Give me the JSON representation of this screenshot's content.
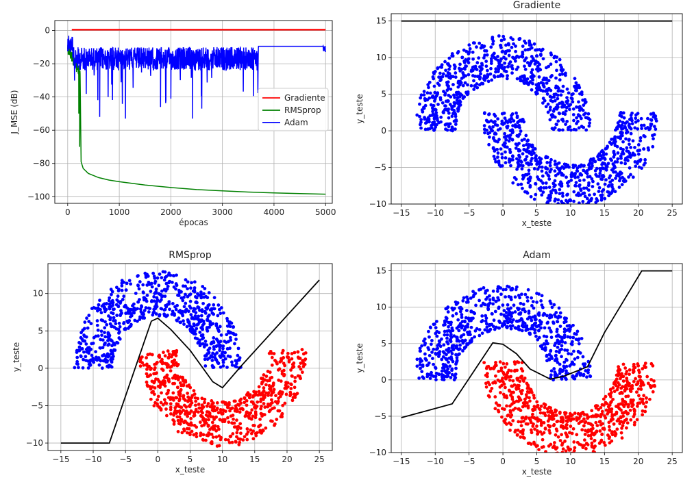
{
  "chart_data": [
    {
      "type": "line",
      "title": "",
      "xlabel": "épocas",
      "ylabel": "J_MSE (dB)",
      "xlim": [
        -250,
        5130
      ],
      "ylim": [
        -104,
        6
      ],
      "xticks": [
        0,
        1000,
        2000,
        3000,
        4000,
        5000
      ],
      "yticks": [
        0,
        -20,
        -40,
        -60,
        -80,
        -100
      ],
      "grid": true,
      "legend": "center-right",
      "series": [
        {
          "name": "Gradiente",
          "color": "#ff0000",
          "x": [
            80,
            5000
          ],
          "y": [
            0.5,
            0.5
          ]
        },
        {
          "name": "RMSprop",
          "color": "#008000",
          "x": [
            0,
            30,
            60,
            90,
            120,
            150,
            180,
            200,
            215,
            230,
            260,
            300,
            400,
            600,
            800,
            1000,
            1500,
            2000,
            2500,
            3000,
            3500,
            4000,
            4500,
            5000
          ],
          "y": [
            -2,
            -8,
            -14,
            -18,
            -22,
            -20,
            -28,
            -42,
            -55,
            -70,
            -79,
            -83,
            -86,
            -88.5,
            -90,
            -91,
            -93,
            -94.5,
            -95.7,
            -96.5,
            -97.2,
            -97.7,
            -98.1,
            -98.5
          ]
        },
        {
          "name": "Adam",
          "color": "#0000ff",
          "x": [
            0,
            20,
            40,
            60,
            80,
            100,
            300,
            500,
            620,
            700,
            900,
            1120,
            1200,
            1500,
            1800,
            2000,
            2420,
            2600,
            3000,
            3400,
            3500,
            3700,
            4000,
            4500,
            4950,
            5000
          ],
          "y": [
            -1,
            -8,
            -5,
            -10,
            -3,
            -12,
            -30,
            -36,
            -52,
            -40,
            -33,
            -53,
            -35,
            -30,
            -46,
            -41,
            -53,
            -47,
            -36,
            -40,
            -32,
            -12,
            -9.5,
            -9.5,
            -9.5,
            -9
          ]
        }
      ]
    },
    {
      "type": "scatter",
      "title": "Gradiente",
      "xlabel": "x_teste",
      "ylabel": "y_teste",
      "xlim": [
        -16.5,
        26.5
      ],
      "ylim": [
        -10,
        16
      ],
      "xticks": [
        -15,
        -10,
        -5,
        0,
        5,
        10,
        15,
        20,
        25
      ],
      "yticks": [
        15,
        10,
        5,
        0,
        -5,
        -10
      ],
      "grid": true,
      "upper_moon_color": "#0000ff",
      "lower_moon_color": "#0000ff",
      "boundary": {
        "color": "#000000",
        "x": [
          -15,
          25
        ],
        "y": [
          15,
          15
        ]
      }
    },
    {
      "type": "scatter",
      "title": "RMSprop",
      "xlabel": "x_teste",
      "ylabel": "y_teste",
      "xlim": [
        -17,
        27
      ],
      "ylim": [
        -11,
        14
      ],
      "xticks": [
        -15,
        -10,
        -5,
        0,
        5,
        10,
        15,
        20,
        25
      ],
      "yticks": [
        10,
        5,
        0,
        -5,
        -10
      ],
      "grid": true,
      "upper_moon_color": "#0000ff",
      "lower_moon_color": "#ff0000",
      "boundary": {
        "color": "#000000",
        "x": [
          -15,
          -7.5,
          -1,
          0,
          2,
          5,
          8.5,
          10,
          13,
          25
        ],
        "y": [
          -10,
          -10,
          6.3,
          6.7,
          5.2,
          2.4,
          -1.8,
          -2.6,
          0.4,
          11.8
        ]
      }
    },
    {
      "type": "scatter",
      "title": "Adam",
      "xlabel": "x_teste",
      "ylabel": "y_teste",
      "xlim": [
        -16.5,
        26.5
      ],
      "ylim": [
        -10,
        16
      ],
      "xticks": [
        -15,
        -10,
        -5,
        0,
        5,
        10,
        15,
        20,
        25
      ],
      "yticks": [
        15,
        10,
        5,
        0,
        -5,
        -10
      ],
      "grid": true,
      "upper_moon_color": "#0000ff",
      "lower_moon_color": "#ff0000",
      "boundary": {
        "color": "#000000",
        "x": [
          -15,
          -7.5,
          -1.5,
          0,
          2,
          4,
          7,
          9,
          12.5,
          15,
          20.5,
          25
        ],
        "y": [
          -5.2,
          -3.3,
          5.1,
          4.9,
          3.6,
          1.5,
          0.1,
          0.5,
          1.8,
          6.5,
          15,
          15
        ]
      }
    }
  ]
}
